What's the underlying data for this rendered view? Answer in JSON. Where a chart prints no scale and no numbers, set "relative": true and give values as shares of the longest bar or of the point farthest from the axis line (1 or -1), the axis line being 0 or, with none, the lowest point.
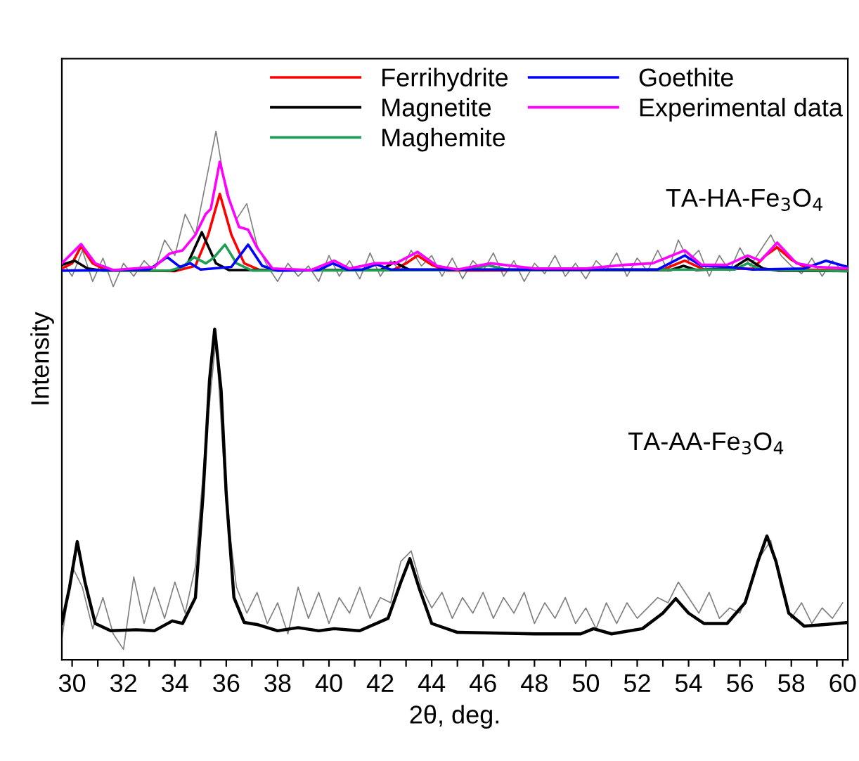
{
  "chart_data": {
    "type": "line",
    "relative": true,
    "xlabel": "2θ, deg.",
    "ylabel": "Intensity",
    "xlim": [
      29.6,
      60.2
    ],
    "xticks": [
      30,
      {
        "value": 31,
        "label": null
      },
      32,
      {
        "value": 33,
        "label": null
      },
      34,
      {
        "value": 35,
        "label": null
      },
      36,
      {
        "value": 37,
        "label": null
      },
      38,
      {
        "value": 39,
        "label": null
      },
      40,
      {
        "value": 41,
        "label": null
      },
      42,
      {
        "value": 43,
        "label": null
      },
      44,
      {
        "value": 45,
        "label": null
      },
      46,
      {
        "value": 47,
        "label": null
      },
      48,
      {
        "value": 49,
        "label": null
      },
      50,
      {
        "value": 51,
        "label": null
      },
      52,
      {
        "value": 53,
        "label": null
      },
      54,
      {
        "value": 55,
        "label": null
      },
      56,
      {
        "value": 57,
        "label": null
      },
      58,
      {
        "value": 59,
        "label": null
      },
      60
    ],
    "tick_labels": "x",
    "grid": false,
    "legend": "top",
    "marker": "none",
    "line_style": "solid",
    "annotations": [
      "TA-HA-Fe$_{3}$O$_{4}$",
      "TA-AA-Fe$_{3}$O$_{4}$"
    ],
    "series": [
      {
        "color": "#808080",
        "x": [
          29.6,
          30.0,
          30.4,
          30.8,
          31.2,
          31.6,
          32.0,
          32.4,
          32.8,
          33.2,
          33.6,
          34.0,
          34.4,
          34.8,
          35.2,
          35.6,
          36.0,
          36.4,
          36.8,
          37.2,
          37.6,
          38.0,
          38.4,
          38.8,
          39.2,
          39.6,
          40.0,
          40.4,
          40.8,
          41.2,
          41.6,
          42.0,
          42.4,
          42.8,
          43.2,
          43.6,
          44.0,
          44.4,
          44.8,
          45.2,
          45.6,
          46.0,
          46.4,
          46.8,
          47.2,
          47.6,
          48.0,
          48.4,
          48.8,
          49.2,
          49.6,
          50.0,
          50.4,
          50.8,
          51.2,
          51.6,
          52.0,
          52.4,
          52.8,
          53.2,
          53.6,
          54.0,
          54.4,
          54.8,
          55.2,
          55.6,
          56.0,
          56.4,
          56.8,
          57.2,
          57.6,
          58.0,
          58.4,
          58.8,
          59.2,
          59.6,
          60.0
        ],
        "values": [
          0.75,
          0.72,
          0.77,
          0.71,
          0.755,
          0.7,
          0.745,
          0.72,
          0.75,
          0.73,
          0.79,
          0.76,
          0.84,
          0.8,
          0.9,
          1.0,
          0.88,
          0.83,
          0.86,
          0.78,
          0.74,
          0.71,
          0.745,
          0.72,
          0.74,
          0.71,
          0.76,
          0.72,
          0.75,
          0.715,
          0.765,
          0.72,
          0.75,
          0.73,
          0.77,
          0.74,
          0.76,
          0.72,
          0.755,
          0.715,
          0.75,
          0.73,
          0.765,
          0.72,
          0.75,
          0.71,
          0.745,
          0.725,
          0.76,
          0.72,
          0.745,
          0.715,
          0.75,
          0.73,
          0.765,
          0.72,
          0.755,
          0.73,
          0.77,
          0.73,
          0.79,
          0.75,
          0.77,
          0.72,
          0.76,
          0.73,
          0.775,
          0.74,
          0.77,
          0.8,
          0.76,
          0.74,
          0.725,
          0.755,
          0.72,
          0.75,
          0.73
        ]
      },
      {
        "color": "#808080",
        "x": [
          29.6,
          30.0,
          30.4,
          30.8,
          31.2,
          31.6,
          32.0,
          32.4,
          32.8,
          33.2,
          33.6,
          34.0,
          34.4,
          34.8,
          35.2,
          35.6,
          36.0,
          36.4,
          36.8,
          37.2,
          37.6,
          38.0,
          38.4,
          38.8,
          39.2,
          39.6,
          40.0,
          40.4,
          40.8,
          41.2,
          41.6,
          42.0,
          42.4,
          42.8,
          43.2,
          43.6,
          44.0,
          44.4,
          44.8,
          45.2,
          45.6,
          46.0,
          46.4,
          46.8,
          47.2,
          47.6,
          48.0,
          48.4,
          48.8,
          49.2,
          49.6,
          50.0,
          50.4,
          50.8,
          51.2,
          51.6,
          52.0,
          52.4,
          52.8,
          53.2,
          53.6,
          54.0,
          54.4,
          54.8,
          55.2,
          55.6,
          56.0,
          56.4,
          56.8,
          57.2,
          57.6,
          58.0,
          58.4,
          58.8,
          59.2,
          59.6,
          60.0
        ],
        "values": [
          0.02,
          0.16,
          0.12,
          0.04,
          0.1,
          0.03,
          0.0,
          0.14,
          0.05,
          0.12,
          0.06,
          0.13,
          0.07,
          0.16,
          0.4,
          0.6,
          0.28,
          0.12,
          0.07,
          0.11,
          0.05,
          0.09,
          0.03,
          0.12,
          0.06,
          0.11,
          0.05,
          0.1,
          0.07,
          0.12,
          0.06,
          0.1,
          0.09,
          0.17,
          0.19,
          0.12,
          0.08,
          0.11,
          0.06,
          0.1,
          0.07,
          0.11,
          0.06,
          0.1,
          0.07,
          0.11,
          0.05,
          0.09,
          0.06,
          0.1,
          0.05,
          0.08,
          0.04,
          0.09,
          0.05,
          0.09,
          0.06,
          0.08,
          0.1,
          0.09,
          0.13,
          0.1,
          0.07,
          0.11,
          0.06,
          0.08,
          0.07,
          0.12,
          0.18,
          0.21,
          0.12,
          0.06,
          0.09,
          0.05,
          0.08,
          0.06,
          0.09
        ]
      },
      {
        "color": "#000000",
        "x": [
          29.6,
          29.9,
          30.2,
          30.5,
          30.9,
          31.5,
          32.5,
          33.2,
          33.9,
          34.3,
          34.8,
          35.1,
          35.35,
          35.55,
          35.8,
          36.0,
          36.3,
          36.7,
          37.2,
          38.0,
          38.8,
          39.6,
          40.2,
          41.2,
          42.3,
          42.8,
          43.15,
          43.5,
          44.0,
          45.0,
          48.0,
          49.8,
          50.3,
          51.0,
          52.2,
          53.0,
          53.5,
          54.0,
          54.6,
          55.5,
          56.2,
          56.7,
          57.05,
          57.4,
          57.9,
          58.5,
          59.3,
          60.2
        ],
        "values": [
          0.05,
          0.12,
          0.208,
          0.13,
          0.05,
          0.036,
          0.038,
          0.036,
          0.055,
          0.05,
          0.1,
          0.3,
          0.52,
          0.618,
          0.5,
          0.3,
          0.1,
          0.052,
          0.048,
          0.036,
          0.042,
          0.036,
          0.04,
          0.036,
          0.06,
          0.13,
          0.175,
          0.12,
          0.05,
          0.033,
          0.03,
          0.03,
          0.04,
          0.03,
          0.04,
          0.07,
          0.098,
          0.07,
          0.05,
          0.05,
          0.09,
          0.17,
          0.219,
          0.17,
          0.07,
          0.045,
          0.048,
          0.052
        ]
      },
      {
        "name": "Ferrihydrite",
        "color": "#ff0000",
        "x": [
          29.6,
          30.0,
          30.35,
          30.8,
          31.3,
          34.0,
          34.8,
          35.3,
          35.75,
          36.2,
          36.7,
          37.3,
          42.5,
          43.0,
          43.45,
          44.0,
          44.6,
          53.0,
          53.85,
          54.6,
          56.5,
          57.0,
          57.45,
          58.0,
          58.7,
          60.2
        ],
        "values": [
          0.735,
          0.745,
          0.778,
          0.745,
          0.732,
          0.73,
          0.74,
          0.8,
          0.879,
          0.8,
          0.745,
          0.732,
          0.732,
          0.745,
          0.76,
          0.742,
          0.731,
          0.733,
          0.75,
          0.733,
          0.735,
          0.76,
          0.776,
          0.752,
          0.733,
          0.731
        ]
      },
      {
        "name": "Magnetite",
        "color": "#000000",
        "x": [
          29.6,
          30.1,
          30.6,
          31.2,
          34.0,
          34.5,
          35.05,
          35.6,
          36.1,
          42.0,
          42.55,
          43.1,
          53.3,
          53.8,
          54.3,
          55.7,
          56.3,
          56.9,
          57.5,
          60.2
        ],
        "values": [
          0.742,
          0.75,
          0.735,
          0.731,
          0.731,
          0.745,
          0.805,
          0.745,
          0.732,
          0.732,
          0.747,
          0.733,
          0.732,
          0.74,
          0.732,
          0.735,
          0.754,
          0.735,
          0.731,
          0.73
        ]
      },
      {
        "name": "Maghemite",
        "color": "#1f9d55",
        "x": [
          29.6,
          33.8,
          34.3,
          34.75,
          35.2,
          35.5,
          35.95,
          36.4,
          37.0,
          45.3,
          46.2,
          47.0,
          55.8,
          56.3,
          56.8,
          60.2
        ],
        "values": [
          0.731,
          0.731,
          0.738,
          0.757,
          0.745,
          0.755,
          0.781,
          0.745,
          0.731,
          0.732,
          0.741,
          0.732,
          0.733,
          0.745,
          0.733,
          0.73
        ]
      },
      {
        "name": "Goethite",
        "color": "#0000ff",
        "x": [
          29.6,
          33.0,
          33.7,
          34.2,
          34.6,
          35.0,
          36.2,
          36.85,
          37.4,
          38.0,
          39.6,
          40.15,
          40.7,
          41.3,
          41.85,
          42.4,
          52.8,
          53.85,
          54.5,
          55.5,
          56.5,
          58.5,
          59.35,
          60.2
        ],
        "values": [
          0.731,
          0.733,
          0.757,
          0.738,
          0.745,
          0.733,
          0.738,
          0.781,
          0.74,
          0.731,
          0.732,
          0.745,
          0.733,
          0.733,
          0.743,
          0.733,
          0.733,
          0.76,
          0.74,
          0.738,
          0.733,
          0.735,
          0.75,
          0.738
        ]
      },
      {
        "name": "Experimental data",
        "color": "#ff00ff",
        "x": [
          29.6,
          30.35,
          30.9,
          31.6,
          33.2,
          33.8,
          34.3,
          34.8,
          35.2,
          35.4,
          35.75,
          36.1,
          36.5,
          36.85,
          37.2,
          37.8,
          39.3,
          40.2,
          40.8,
          41.8,
          42.6,
          43.45,
          44.2,
          45.0,
          46.3,
          48.0,
          50.0,
          51.5,
          52.6,
          53.85,
          54.5,
          55.5,
          56.3,
          56.8,
          57.45,
          58.2,
          59.0,
          60.2
        ],
        "values": [
          0.745,
          0.782,
          0.745,
          0.732,
          0.738,
          0.764,
          0.77,
          0.8,
          0.84,
          0.85,
          0.941,
          0.87,
          0.815,
          0.81,
          0.775,
          0.735,
          0.732,
          0.75,
          0.735,
          0.745,
          0.745,
          0.767,
          0.74,
          0.733,
          0.745,
          0.735,
          0.735,
          0.742,
          0.745,
          0.77,
          0.742,
          0.742,
          0.76,
          0.75,
          0.785,
          0.745,
          0.738,
          0.735
        ]
      }
    ]
  }
}
